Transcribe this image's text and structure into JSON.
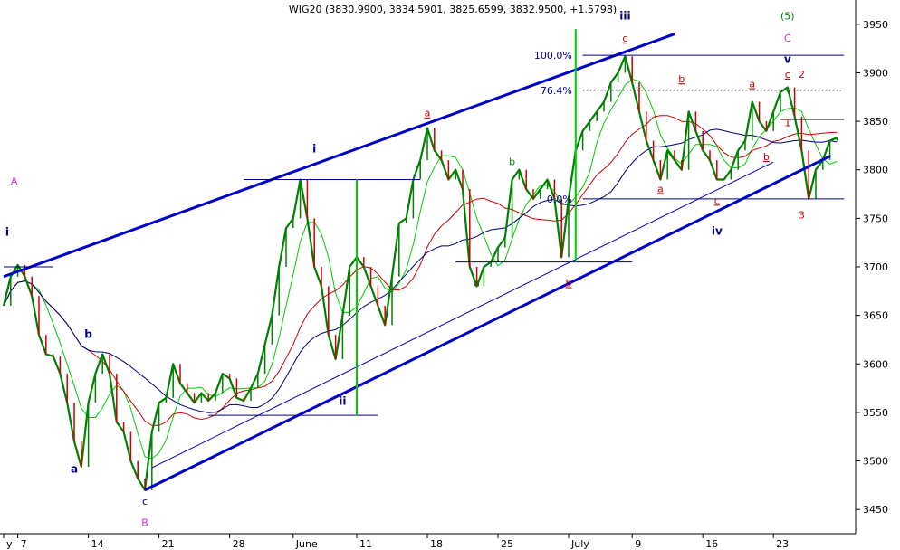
{
  "chart_data": {
    "type": "line",
    "title": "WIG20 (3830.9900, 3834.5901, 3825.6599, 3832.9500, +1.5798)",
    "ylim": [
      3425,
      3975
    ],
    "yticks": [
      3450,
      3500,
      3550,
      3600,
      3650,
      3700,
      3750,
      3800,
      3850,
      3900,
      3950
    ],
    "xticks": [
      {
        "label": "y",
        "bar": 0
      },
      {
        "label": "7",
        "bar": 2
      },
      {
        "label": "14",
        "bar": 12
      },
      {
        "label": "21",
        "bar": 22
      },
      {
        "label": "28",
        "bar": 32
      },
      {
        "label": "June",
        "bar": 41
      },
      {
        "label": "11",
        "bar": 50
      },
      {
        "label": "18",
        "bar": 60
      },
      {
        "label": "25",
        "bar": 70
      },
      {
        "label": "July",
        "bar": 80
      },
      {
        "label": "9",
        "bar": 89
      },
      {
        "label": "16",
        "bar": 99
      },
      {
        "label": "23",
        "bar": 109
      }
    ],
    "price_series": {
      "name": "WIG20",
      "color": "#008000",
      "values": [
        3660,
        3690,
        3702,
        3690,
        3670,
        3630,
        3610,
        3608,
        3590,
        3560,
        3520,
        3494,
        3560,
        3590,
        3610,
        3590,
        3540,
        3530,
        3500,
        3482,
        3470,
        3530,
        3560,
        3565,
        3600,
        3580,
        3570,
        3560,
        3570,
        3562,
        3570,
        3590,
        3585,
        3565,
        3562,
        3575,
        3590,
        3620,
        3650,
        3700,
        3740,
        3750,
        3790,
        3750,
        3700,
        3680,
        3630,
        3605,
        3650,
        3700,
        3710,
        3700,
        3680,
        3660,
        3640,
        3690,
        3745,
        3750,
        3790,
        3810,
        3843,
        3820,
        3810,
        3790,
        3800,
        3780,
        3700,
        3680,
        3700,
        3705,
        3720,
        3730,
        3790,
        3800,
        3780,
        3770,
        3780,
        3790,
        3770,
        3710,
        3770,
        3820,
        3840,
        3850,
        3860,
        3870,
        3890,
        3900,
        3917,
        3890,
        3860,
        3830,
        3810,
        3790,
        3820,
        3810,
        3800,
        3860,
        3840,
        3820,
        3810,
        3790,
        3790,
        3800,
        3820,
        3830,
        3870,
        3850,
        3840,
        3860,
        3880,
        3885,
        3855,
        3820,
        3770,
        3800,
        3810,
        3830,
        3833
      ]
    },
    "moving_averages": [
      {
        "color": "#00cc00",
        "period": 5
      },
      {
        "color": "#cc0000",
        "period": 13
      },
      {
        "color": "#000080",
        "period": 21
      }
    ],
    "channel_lines": [
      {
        "color": "#0000cc",
        "width": 3,
        "from": [
          0,
          3690
        ],
        "to": [
          95,
          3940
        ]
      },
      {
        "color": "#0000cc",
        "width": 3,
        "from": [
          20,
          3470
        ],
        "to": [
          117,
          3814
        ]
      },
      {
        "color": "#0000cc",
        "width": 1,
        "from": [
          21,
          3493
        ],
        "to": [
          109,
          3808
        ]
      }
    ],
    "level_lines": [
      {
        "color": "#000080",
        "y": 3700,
        "bar_from": 0,
        "bar_to": 7
      },
      {
        "color": "#000080",
        "y": 3790,
        "bar_from": 34,
        "bar_to": 59
      },
      {
        "color": "#000080",
        "y": 3547,
        "bar_from": 29,
        "bar_to": 53
      },
      {
        "color": "#000080",
        "y": 3705,
        "bar_from": 64,
        "bar_to": 89
      },
      {
        "color": "#000080",
        "y": 3918,
        "bar_from": 82,
        "bar_to": 119
      },
      {
        "color": "#000000",
        "y": 3852,
        "bar_from": 110,
        "bar_to": 119
      },
      {
        "color": "#000080",
        "y": 3770,
        "bar_from": 82,
        "bar_to": 119
      }
    ],
    "dotted_lines": [
      {
        "color": "#000000",
        "y": 3882,
        "bar_from": 82,
        "bar_to": 119
      }
    ],
    "vertical_lines": [
      {
        "color": "#00cc00",
        "bar": 50,
        "y_from": 3547,
        "y_to": 3790
      },
      {
        "color": "#00cc00",
        "bar": 81,
        "y_from": 3705,
        "y_to": 3945
      }
    ],
    "fib_labels": [
      {
        "text": "100.0%",
        "bar": 81,
        "y": 3918
      },
      {
        "text": "76.4%",
        "bar": 81,
        "y": 3882
      },
      {
        "text": "0.0%",
        "bar": 81,
        "y": 3770
      }
    ],
    "wave_labels": [
      {
        "text": "A",
        "bar": 1.5,
        "y": 3785,
        "color": "#cc33cc",
        "bold": false
      },
      {
        "text": "i",
        "bar": 0.5,
        "y": 3732,
        "color": "#000080",
        "bold": true
      },
      {
        "text": "b",
        "bar": 12,
        "y": 3627,
        "color": "#000080",
        "bold": true
      },
      {
        "text": "a",
        "bar": 10,
        "y": 3488,
        "color": "#000080",
        "bold": true
      },
      {
        "text": "c",
        "bar": 20,
        "y": 3455,
        "color": "#000080",
        "bold": false
      },
      {
        "text": "B",
        "bar": 20,
        "y": 3433,
        "color": "#cc33cc",
        "bold": false
      },
      {
        "text": "i",
        "bar": 44,
        "y": 3818,
        "color": "#000080",
        "bold": true
      },
      {
        "text": "ii",
        "bar": 48,
        "y": 3558,
        "color": "#000080",
        "bold": true
      },
      {
        "text": "a",
        "bar": 60,
        "y": 3855,
        "color": "#cc0000",
        "bold": false
      },
      {
        "text": "b",
        "bar": 72,
        "y": 3805,
        "color": "#008000",
        "bold": false
      },
      {
        "text": "a",
        "bar": 67,
        "y": 3680,
        "color": "#008000",
        "bold": false
      },
      {
        "text": "b",
        "bar": 80,
        "y": 3680,
        "color": "#cc0000",
        "bold": false
      },
      {
        "text": "iii",
        "bar": 88,
        "y": 3955,
        "color": "#000080",
        "bold": true
      },
      {
        "text": "c",
        "bar": 88,
        "y": 3932,
        "color": "#cc0000",
        "bold": false
      },
      {
        "text": "b",
        "bar": 96,
        "y": 3890,
        "color": "#cc0000",
        "bold": false
      },
      {
        "text": "a",
        "bar": 93,
        "y": 3777,
        "color": "#cc0000",
        "bold": false
      },
      {
        "text": "c",
        "bar": 101,
        "y": 3765,
        "color": "#cc0000",
        "bold": false
      },
      {
        "text": "iv",
        "bar": 101,
        "y": 3733,
        "color": "#000080",
        "bold": true
      },
      {
        "text": "a",
        "bar": 106,
        "y": 3885,
        "color": "#cc0000",
        "bold": false
      },
      {
        "text": "b",
        "bar": 108,
        "y": 3810,
        "color": "#cc0000",
        "bold": false
      },
      {
        "text": "(5)",
        "bar": 111,
        "y": 3955,
        "color": "#008000",
        "bold": false
      },
      {
        "text": "C",
        "bar": 111,
        "y": 3932,
        "color": "#cc33cc",
        "bold": false
      },
      {
        "text": "v",
        "bar": 111,
        "y": 3910,
        "color": "#000080",
        "bold": true
      },
      {
        "text": "c",
        "bar": 111,
        "y": 3895,
        "color": "#cc0000",
        "bold": false
      },
      {
        "text": "2",
        "bar": 113,
        "y": 3895,
        "color": "#cc0000",
        "bold": false
      },
      {
        "text": "1",
        "bar": 111,
        "y": 3845,
        "color": "#cc0000",
        "bold": false
      },
      {
        "text": "3",
        "bar": 113,
        "y": 3750,
        "color": "#cc0000",
        "bold": false
      }
    ]
  }
}
